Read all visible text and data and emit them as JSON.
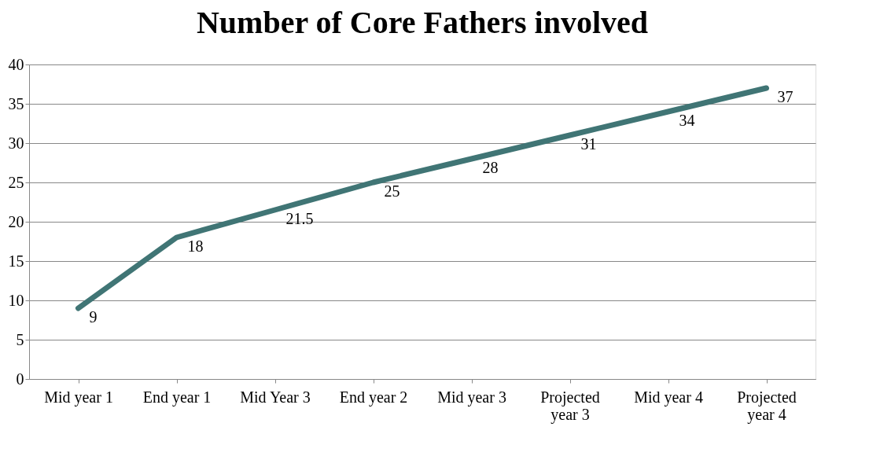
{
  "chart_data": {
    "type": "line",
    "title": "Number of Core Fathers involved",
    "categories": [
      "Mid year 1",
      "End year 1",
      "Mid Year 3",
      "End year 2",
      "Mid year 3",
      "Projected year 3",
      "Mid year 4",
      "Projected year 4"
    ],
    "series": [
      {
        "color": "#407575",
        "values": [
          9,
          18,
          21.5,
          25,
          28,
          31,
          34,
          37
        ]
      }
    ],
    "ylim": [
      0,
      40
    ],
    "yticks": [
      0,
      5,
      10,
      15,
      20,
      25,
      30,
      35,
      40
    ],
    "grid": "y",
    "data_labels": true,
    "marker": "none",
    "line_style": "solid"
  }
}
